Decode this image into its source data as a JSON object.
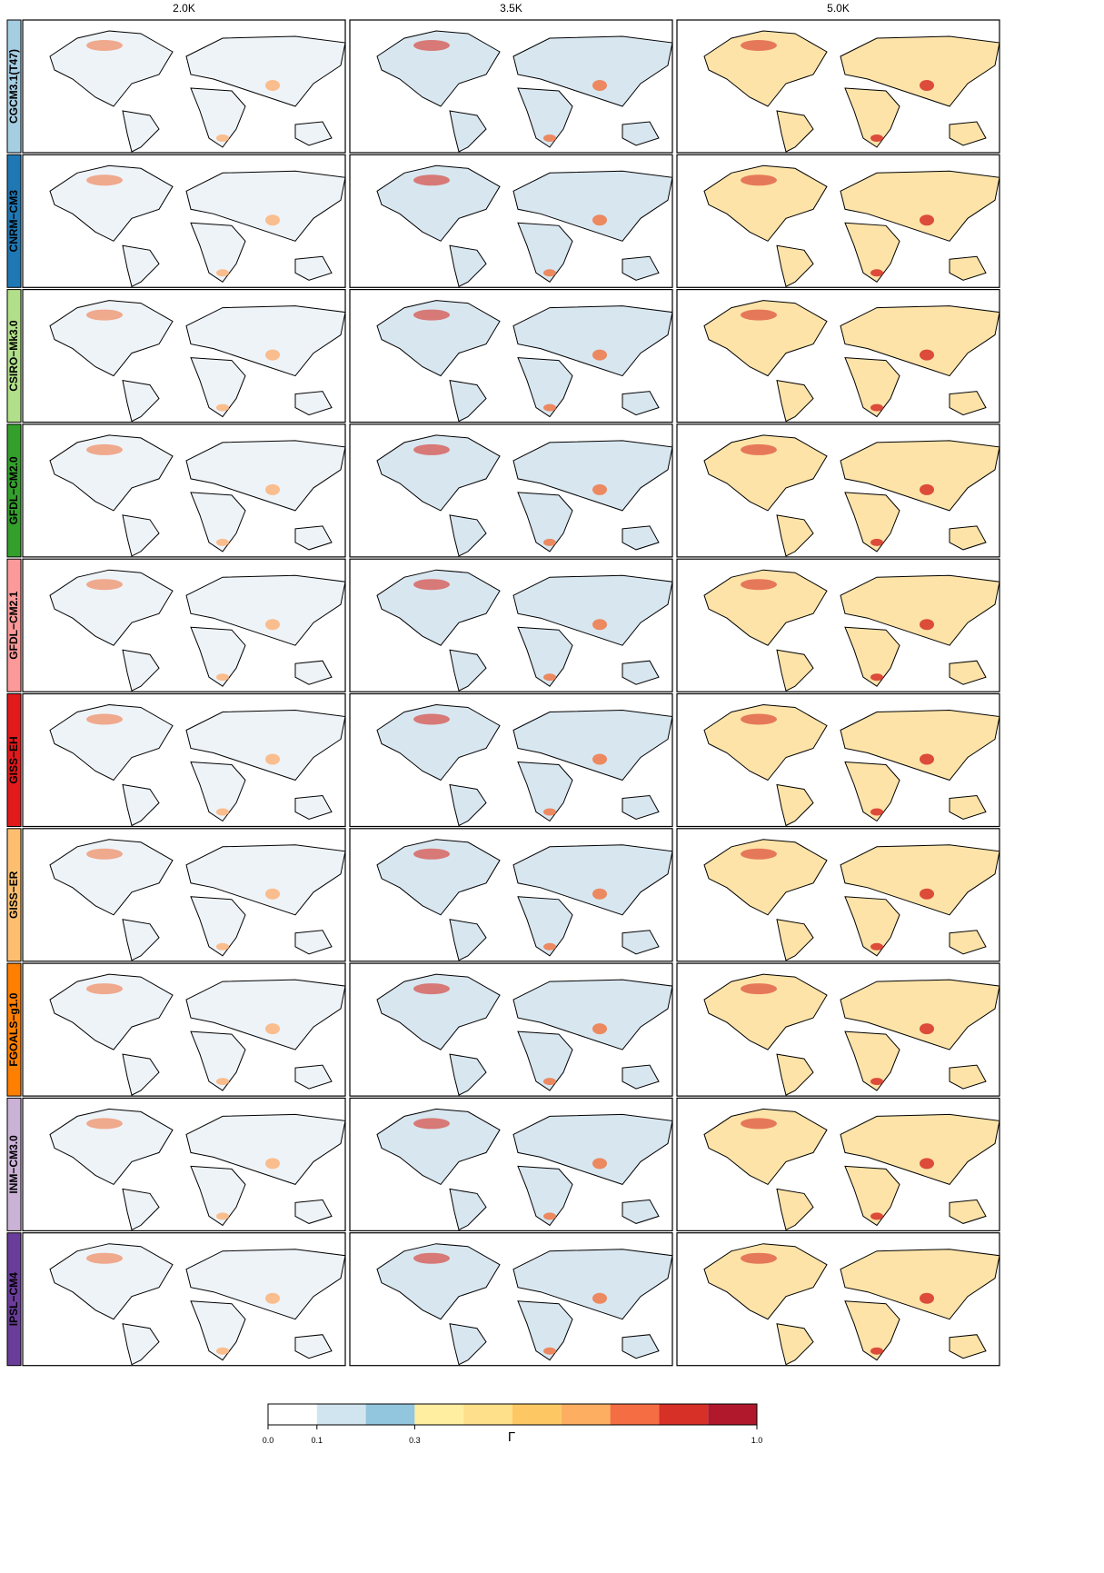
{
  "columns": [
    "2.0K",
    "3.5K",
    "5.0K"
  ],
  "models": [
    {
      "name": "CGCM3.1(T47)",
      "color": "#a6cee3"
    },
    {
      "name": "CNRM−CM3",
      "color": "#1f78b4"
    },
    {
      "name": "CSIRO−Mk3.0",
      "color": "#b2df8a"
    },
    {
      "name": "GFDL−CM2.0",
      "color": "#33a02c"
    },
    {
      "name": "GFDL−CM2.1",
      "color": "#fb9a99"
    },
    {
      "name": "GISS−EH",
      "color": "#e31a1c"
    },
    {
      "name": "GISS−ER",
      "color": "#fdbf6f"
    },
    {
      "name": "FGOALS−g1.0",
      "color": "#ff7f00"
    },
    {
      "name": "INM−CM3.0",
      "color": "#cab2d6"
    },
    {
      "name": "IPSL−CM4",
      "color": "#6a3d9a"
    }
  ],
  "colorbar": {
    "label": "Γ",
    "ticks": [
      {
        "value": 0,
        "label": "0.0"
      },
      0.1,
      0.3,
      {
        "value": 1,
        "label": "1.0"
      }
    ],
    "colors": [
      "#ffffff",
      "#d1e5f0",
      "#92c5de",
      "#ffeda0",
      "#fee08b",
      "#fdc864",
      "#fdae61",
      "#f46d43",
      "#d73027",
      "#b2182b"
    ]
  }
}
